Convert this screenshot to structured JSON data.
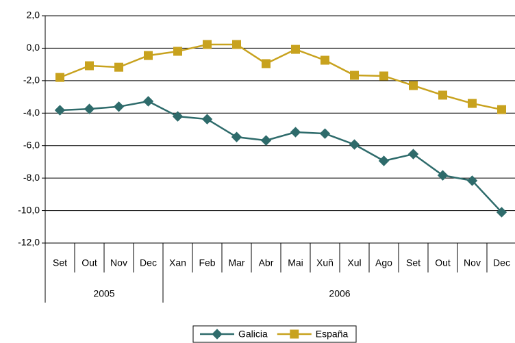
{
  "chart_data": {
    "type": "line",
    "categories": [
      "Set",
      "Out",
      "Nov",
      "Dec",
      "Xan",
      "Feb",
      "Mar",
      "Abr",
      "Mai",
      "Xuñ",
      "Xul",
      "Ago",
      "Set",
      "Out",
      "Nov",
      "Dec"
    ],
    "category_groups": [
      {
        "label": "2005",
        "count": 4
      },
      {
        "label": "2006",
        "count": 12
      }
    ],
    "series": [
      {
        "name": "Galicia",
        "color": "#2e6b6b",
        "marker": "diamond",
        "values": [
          -3.82,
          -3.74,
          -3.6,
          -3.27,
          -4.2,
          -4.37,
          -5.47,
          -5.68,
          -5.17,
          -5.26,
          -5.93,
          -6.94,
          -6.52,
          -7.83,
          -8.16,
          -10.1
        ]
      },
      {
        "name": "España",
        "color": "#c8a21e",
        "marker": "square",
        "values": [
          -1.8,
          -1.08,
          -1.17,
          -0.45,
          -0.19,
          0.23,
          0.23,
          -0.95,
          -0.07,
          -0.74,
          -1.67,
          -1.71,
          -2.3,
          -2.89,
          -3.4,
          -3.78
        ]
      }
    ],
    "ylim": [
      -12,
      2
    ],
    "yticks": [
      {
        "value": 2,
        "label": "2,0"
      },
      {
        "value": 0,
        "label": "0,0"
      },
      {
        "value": -2,
        "label": "-2,0"
      },
      {
        "value": -4,
        "label": "-4,0"
      },
      {
        "value": -6,
        "label": "-6,0"
      },
      {
        "value": -8,
        "label": "-8,0"
      },
      {
        "value": -10,
        "label": "-10,0"
      },
      {
        "value": -12,
        "label": "-12,0"
      }
    ],
    "grid": true,
    "legend": "bottom"
  }
}
